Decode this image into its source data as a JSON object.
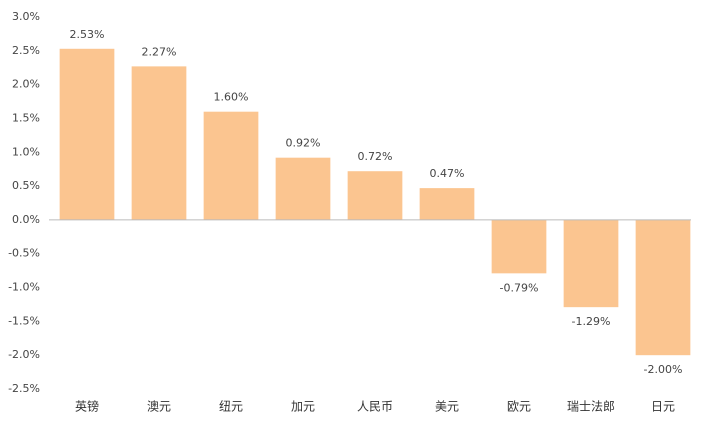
{
  "chart_data": {
    "type": "bar",
    "categories": [
      "英镑",
      "澳元",
      "纽元",
      "加元",
      "人民币",
      "美元",
      "欧元",
      "瑞士法郎",
      "日元"
    ],
    "values": [
      2.53,
      2.27,
      1.6,
      0.92,
      0.72,
      0.47,
      -0.79,
      -1.29,
      -2.0
    ],
    "value_labels": [
      "2.53%",
      "2.27%",
      "1.60%",
      "0.92%",
      "0.72%",
      "0.47%",
      "-0.79%",
      "-1.29%",
      "-2.00%"
    ],
    "color": "#fbc590",
    "ylim": [
      -2.5,
      3.0
    ],
    "yticks": [
      {
        "value": 3.0,
        "label": "3.0%"
      },
      {
        "value": 2.5,
        "label": "2.5%"
      },
      {
        "value": 2.0,
        "label": "2.0%"
      },
      {
        "value": 1.5,
        "label": "1.5%"
      },
      {
        "value": 1.0,
        "label": "1.0%"
      },
      {
        "value": 0.5,
        "label": "0.5%"
      },
      {
        "value": 0.0,
        "label": "0.0%"
      },
      {
        "value": -0.5,
        "label": "-0.5%"
      },
      {
        "value": -1.0,
        "label": "-1.0%"
      },
      {
        "value": -1.5,
        "label": "-1.5%"
      },
      {
        "value": -2.0,
        "label": "-2.0%"
      },
      {
        "value": -2.5,
        "label": "-2.5%"
      }
    ],
    "grid": false
  }
}
